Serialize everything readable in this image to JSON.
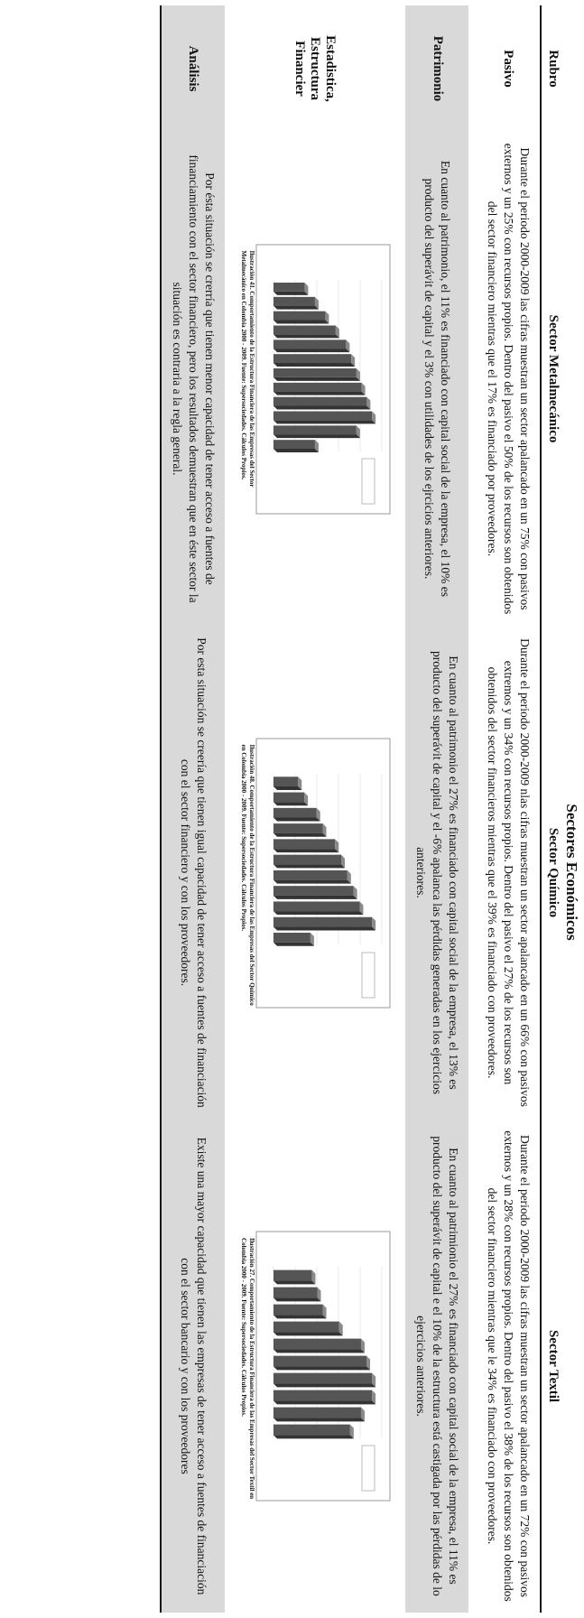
{
  "table": {
    "title": "Sectores Económicos",
    "rubro_header": "Rubro",
    "sector_headers": [
      "Sector Metalmecánico",
      "Sector Químico",
      "Sector Textil"
    ],
    "rows": [
      {
        "label": "Pasivo",
        "cells": [
          "Durante el periodo 2000-2009 las cifras muestran un sector apalancado en un 75% con pasivos externos y un 25% con recursos propios. Dentro del pasivo el 50% de los recursos son obtenidos del sector financiero mientras que el 17% es financiado por proveedores.",
          "Durante el periodo 2000-2009 nlas cifras muestran un sector apalancado en un 66% con pasivos extremos y un 34% con recursos propios. Dentro del pasivo el 27% de los recursos son obtenidos del sector financieros mientras que el 39% es financiado con proveedores.",
          "Durante el periodo 2000-2009 las cifras muestran un sector apalancado en un 72% con pasivos externos y un 28% con recursos propios. Dentro del pasivo el 38% de los recursos son obtenidos del sector financiero mientras que le 34% es financiado con proveedores."
        ]
      },
      {
        "label": "Patrimonio",
        "cells": [
          "En cuanto al patrimonio, el 11% es financiado con capital social de la empresa, el 10% es producto del superávit de capital y el 3% con utilidades de los ejrcicios anteriores.",
          "En cuanto al patrimonio el 27% es financiado con capital social de la empresa, el 13% es producto del superávit de capital y el -6% apalanca las pérdidas generadas en los ejercicios anteriores.",
          "En cuanto al patrimionio el  27% es financiado con capital social de la empresa, el 11% es producto del superávit de capital e el 10% de la estructura está castigada por las pérdidas de lo ejercicios anteriores."
        ]
      },
      {
        "label": "Estadistica, Estructura Financier",
        "captions": [
          "Ilustración 41.  Comportamiento de la Estructura Financiera de las Empresas del Sector Metalmecánico en Colombia 2000 - 2009.  Fuente: Supersociedades.  Cálculos Propios.",
          "Ilustración 48.  Comportamiento de la Estructura Financiera de las Empresas del Sector Químico en Colombia 2000 - 2009.  Fuente: Supersociedades.  Cálculos Propios.",
          "Ilustración 27.  Comportamiento de la Estructura Financiera de las Empresas del Sector Textil en Colombia 2000 - 2009.  Fuente: Supersociedades.  Cálculos Propios."
        ]
      },
      {
        "label": "Análisis",
        "cells": [
          "Por ésta situación se crerría que tienen menor capacidad de tener acceso a fuentes de financiamiento con el sector financiero, pero los resultados demuestran que en éste sector la situación es contraria a la regla general.",
          "Por esta situación se creería que tienen igual capacidad de tener acceso a fuentes de financiación con el sector financiero y con los proveedores.",
          "Existe una mayor capacidad que tienen las empresas de tener acceso a fuentes de financiación con el sector bancario y con los proveedores"
        ]
      }
    ]
  },
  "colors": {
    "band": "#d9d9d9",
    "bar": "#555555",
    "bar_top": "#8a8a8a",
    "bar_side": "#333333"
  },
  "chart_data": [
    {
      "type": "bar",
      "values": [
        3,
        4,
        5,
        6,
        7,
        7.5,
        8,
        8.5,
        9,
        9.5,
        8,
        4
      ]
    },
    {
      "type": "bar",
      "values": [
        2,
        2.5,
        3.5,
        4,
        5,
        5.5,
        6,
        6.5,
        7,
        8,
        3
      ]
    },
    {
      "type": "bar",
      "values": [
        3.5,
        4,
        4.5,
        6,
        8,
        8.5,
        9,
        9,
        8,
        7
      ]
    }
  ]
}
